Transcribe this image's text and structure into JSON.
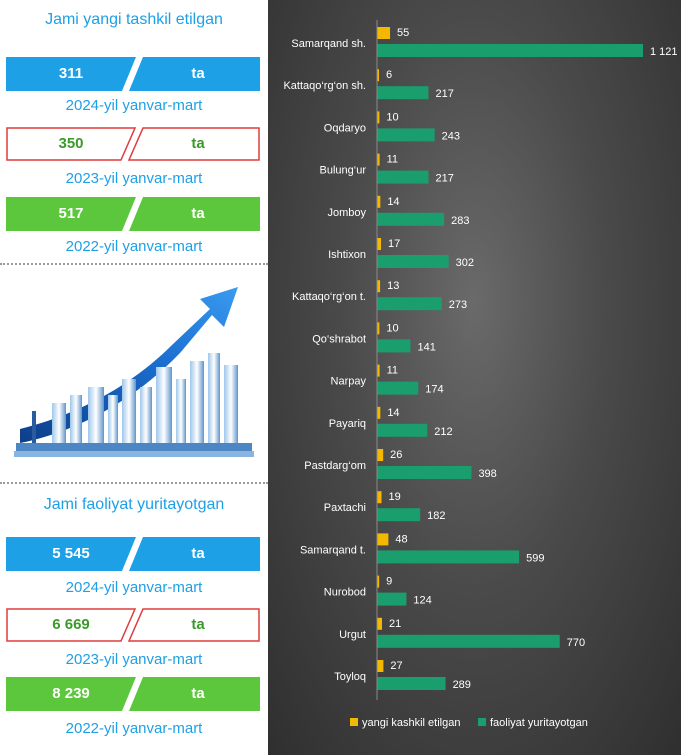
{
  "left": {
    "title1": "Jami yangi tashkil etilgan",
    "badges1": [
      {
        "value": "311",
        "unit": "ta",
        "caption": "2024-yil yanvar-mart",
        "style": "blue"
      },
      {
        "value": "350",
        "unit": "ta",
        "caption": "2023-yil yanvar-mart",
        "style": "outline"
      },
      {
        "value": "517",
        "unit": "ta",
        "caption": "2022-yil yanvar-mart",
        "style": "green"
      }
    ],
    "title2": "Jami faoliyat yuritayotgan",
    "badges2": [
      {
        "value": "5 545",
        "unit": "ta",
        "caption": "2024-yil yanvar-mart",
        "style": "blue"
      },
      {
        "value": "6 669",
        "unit": "ta",
        "caption": "2023-yil yanvar-mart",
        "style": "outline"
      },
      {
        "value": "8 239",
        "unit": "ta",
        "caption": "2022-yil yanvar-mart",
        "style": "green"
      }
    ]
  },
  "colors": {
    "blue": "#1ea0e6",
    "green": "#5cc73c",
    "red": "#e03c3c",
    "orange": "#f5b800",
    "teal": "#1a9e6e"
  },
  "chart_data": {
    "type": "bar",
    "orientation": "horizontal",
    "categories": [
      "Samarqand sh.",
      "Kattaqo‘rg‘on sh.",
      "Oqdaryo",
      "Bulung‘ur",
      "Jomboy",
      "Ishtixon",
      "Kattaqo‘rg‘on t.",
      "Qo‘shrabot",
      "Narpay",
      "Payariq",
      "Pastdarg‘om",
      "Paxtachi",
      "Samarqand t.",
      "Nurobod",
      "Urgut",
      "Toyloq"
    ],
    "series": [
      {
        "name": "yangi kashkil etilgan",
        "color": "#f5b800",
        "values": [
          55,
          6,
          10,
          11,
          14,
          17,
          13,
          10,
          11,
          14,
          26,
          19,
          48,
          9,
          21,
          27
        ],
        "labels": [
          "55",
          "6",
          "10",
          "11",
          "14",
          "17",
          "13",
          "10",
          "11",
          "14",
          "26",
          "19",
          "48",
          "9",
          "21",
          "27"
        ]
      },
      {
        "name": "faoliyat yuritayotgan",
        "color": "#1a9e6e",
        "values": [
          1121,
          217,
          243,
          217,
          283,
          302,
          273,
          141,
          174,
          212,
          398,
          182,
          599,
          124,
          770,
          289
        ],
        "labels": [
          "1 121",
          "217",
          "243",
          "217",
          "283",
          "302",
          "273",
          "141",
          "174",
          "212",
          "398",
          "182",
          "599",
          "124",
          "770",
          "289"
        ]
      }
    ],
    "xlim": [
      0,
      1121
    ],
    "legend": "bottom"
  }
}
